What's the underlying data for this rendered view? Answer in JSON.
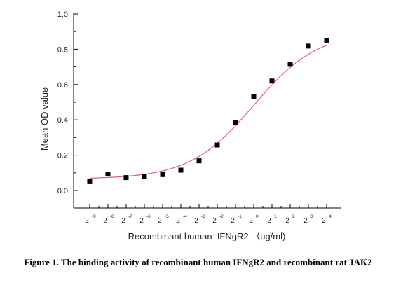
{
  "chart_data": {
    "type": "scatter",
    "title": "",
    "xlabel": "Recombinant human  IFNgR2 （ug/ml)",
    "ylabel": "Mean OD value",
    "x_scale": "log2",
    "x_tick_base": "2",
    "x_tick_exponents": [
      "-9",
      "-8",
      "-7",
      "-6",
      "-5",
      "-4",
      "-3",
      "-2",
      "-1",
      "0",
      "1",
      "2",
      "3",
      "4"
    ],
    "y_ticks": [
      "0.0",
      "0.2",
      "0.4",
      "0.6",
      "0.8",
      "1.0"
    ],
    "ylim": [
      0,
      1.0
    ],
    "grid": false,
    "series": [
      {
        "marker": "square",
        "color": "#000000",
        "points": [
          {
            "x": 0.00195,
            "y": 0.05
          },
          {
            "x": 0.0039,
            "y": 0.093
          },
          {
            "x": 0.0078,
            "y": 0.073
          },
          {
            "x": 0.0156,
            "y": 0.08
          },
          {
            "x": 0.03125,
            "y": 0.09
          },
          {
            "x": 0.0625,
            "y": 0.115
          },
          {
            "x": 0.125,
            "y": 0.168
          },
          {
            "x": 0.25,
            "y": 0.258
          },
          {
            "x": 0.5,
            "y": 0.385
          },
          {
            "x": 1,
            "y": 0.533
          },
          {
            "x": 2,
            "y": 0.62
          },
          {
            "x": 4,
            "y": 0.715
          },
          {
            "x": 8,
            "y": 0.818
          },
          {
            "x": 16,
            "y": 0.85
          }
        ]
      }
    ],
    "fit_curve": {
      "color": "#e06070",
      "model": "four-parameter logistic",
      "bottom": 0.065,
      "top": 0.9,
      "ec50": 1.0,
      "hill": 0.82
    }
  },
  "caption": "Figure 1. The binding activity of recombinant human IFNgR2 and recombinant rat JAK2"
}
